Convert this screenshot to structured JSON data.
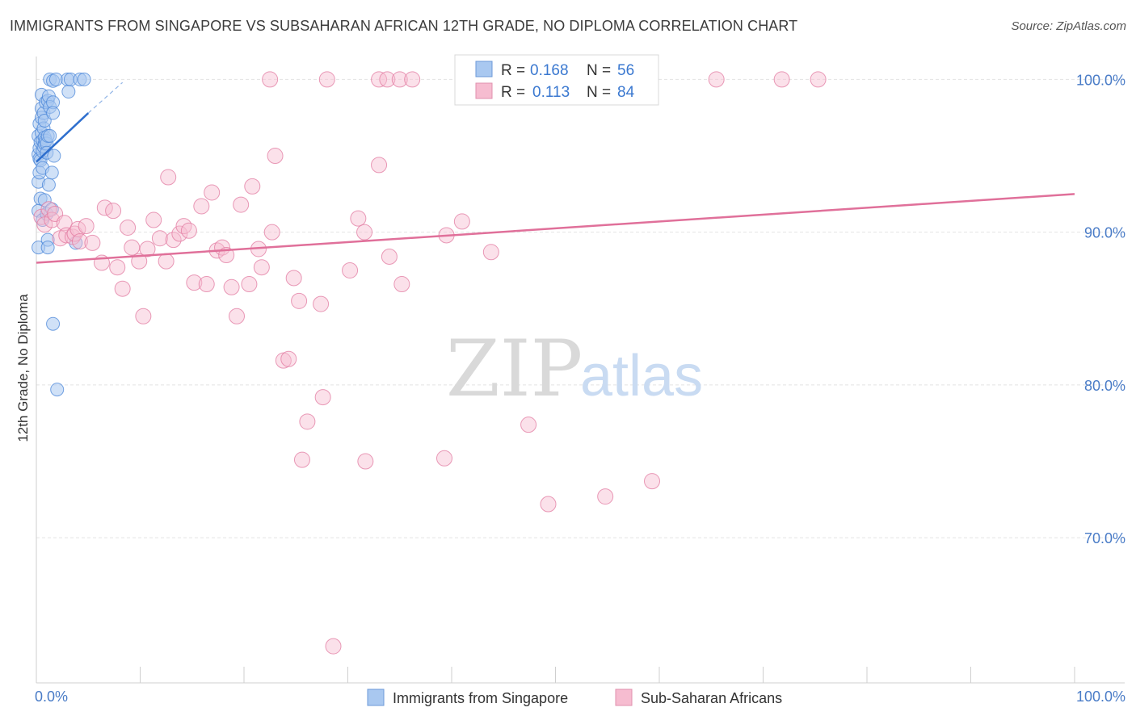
{
  "header": {
    "title": "IMMIGRANTS FROM SINGAPORE VS SUBSAHARAN AFRICAN 12TH GRADE, NO DIPLOMA CORRELATION CHART",
    "source": "Source: ZipAtlas.com"
  },
  "watermark": {
    "zip": "ZIP",
    "atlas": "atlas"
  },
  "colors": {
    "blue": "#4a86d8",
    "blue_fill": "#a9c8f0",
    "pink": "#e27aa0",
    "pink_fill": "#f6bcd0",
    "grid": "#e3e3e3",
    "tick_text": "#4a7cc7"
  },
  "legend": {
    "rows": [
      {
        "r_label": "R = ",
        "r_value": "0.168",
        "n_label": "N = ",
        "n_value": "56"
      },
      {
        "r_label": "R = ",
        "r_value": "0.113",
        "n_label": "N = ",
        "n_value": "84"
      }
    ]
  },
  "bottom_legend": [
    "Immigrants from Singapore",
    "Sub-Saharan Africans"
  ],
  "chart_data": {
    "type": "scatter",
    "xlabel": "",
    "ylabel": "12th Grade, No Diploma",
    "xlim": [
      0,
      100
    ],
    "ylim": [
      60.5,
      101.5
    ],
    "x_tick_labels": [
      "0.0%",
      "100.0%"
    ],
    "y_ticks": [
      70,
      80,
      90,
      100
    ],
    "y_tick_labels": [
      "70.0%",
      "80.0%",
      "90.0%",
      "100.0%"
    ],
    "grid": true,
    "series": [
      {
        "name": "Immigrants from Singapore",
        "r": 0.168,
        "n": 56,
        "trend": {
          "x": [
            0.0,
            5.0
          ],
          "y": [
            94.6,
            97.8
          ],
          "dashed_to": [
            8.3,
            99.8
          ]
        },
        "points": [
          [
            0.2,
            96.3
          ],
          [
            0.2,
            95.1
          ],
          [
            0.2,
            93.3
          ],
          [
            0.2,
            91.4
          ],
          [
            0.2,
            89.0
          ],
          [
            0.3,
            97.1
          ],
          [
            0.3,
            95.5
          ],
          [
            0.3,
            94.8
          ],
          [
            0.3,
            93.9
          ],
          [
            0.4,
            95.9
          ],
          [
            0.4,
            94.7
          ],
          [
            0.4,
            92.2
          ],
          [
            0.5,
            99.0
          ],
          [
            0.5,
            98.1
          ],
          [
            0.5,
            97.5
          ],
          [
            0.5,
            96.5
          ],
          [
            0.6,
            96.0
          ],
          [
            0.6,
            95.3
          ],
          [
            0.6,
            94.2
          ],
          [
            0.6,
            90.8
          ],
          [
            0.7,
            97.8
          ],
          [
            0.7,
            96.8
          ],
          [
            0.7,
            95.6
          ],
          [
            0.8,
            97.3
          ],
          [
            0.8,
            96.2
          ],
          [
            0.8,
            95.8
          ],
          [
            0.8,
            92.1
          ],
          [
            0.9,
            98.5
          ],
          [
            0.9,
            96.0
          ],
          [
            1.0,
            95.8
          ],
          [
            1.0,
            95.2
          ],
          [
            1.0,
            91.2
          ],
          [
            1.1,
            98.6
          ],
          [
            1.1,
            96.3
          ],
          [
            1.1,
            89.5
          ],
          [
            1.1,
            89.0
          ],
          [
            1.2,
            98.9
          ],
          [
            1.2,
            93.1
          ],
          [
            1.3,
            100.0
          ],
          [
            1.3,
            98.2
          ],
          [
            1.3,
            96.3
          ],
          [
            1.5,
            93.9
          ],
          [
            1.5,
            91.5
          ],
          [
            1.6,
            99.9
          ],
          [
            1.6,
            98.5
          ],
          [
            1.6,
            97.8
          ],
          [
            1.7,
            95.0
          ],
          [
            1.6,
            84.0
          ],
          [
            1.9,
            100.0
          ],
          [
            2.0,
            79.7
          ],
          [
            3.0,
            100.0
          ],
          [
            3.1,
            99.2
          ],
          [
            3.3,
            100.0
          ],
          [
            3.8,
            89.3
          ],
          [
            4.2,
            100.0
          ],
          [
            4.6,
            100.0
          ]
        ]
      },
      {
        "name": "Sub-Saharan Africans",
        "r": 0.113,
        "n": 84,
        "trend": {
          "x": [
            0.0,
            100.0
          ],
          "y": [
            88.0,
            92.5
          ]
        },
        "points": [
          [
            0.5,
            91.0
          ],
          [
            0.8,
            90.5
          ],
          [
            1.2,
            91.5
          ],
          [
            1.5,
            90.8
          ],
          [
            1.8,
            91.2
          ],
          [
            2.3,
            89.6
          ],
          [
            2.7,
            90.6
          ],
          [
            2.9,
            89.8
          ],
          [
            3.5,
            89.7
          ],
          [
            3.7,
            89.9
          ],
          [
            4.0,
            90.2
          ],
          [
            4.2,
            89.4
          ],
          [
            4.8,
            90.4
          ],
          [
            5.4,
            89.3
          ],
          [
            6.3,
            88.0
          ],
          [
            6.6,
            91.6
          ],
          [
            7.4,
            91.4
          ],
          [
            7.8,
            87.7
          ],
          [
            8.3,
            86.3
          ],
          [
            8.8,
            90.3
          ],
          [
            9.2,
            89.0
          ],
          [
            9.9,
            88.1
          ],
          [
            10.3,
            84.5
          ],
          [
            10.7,
            88.9
          ],
          [
            11.3,
            90.8
          ],
          [
            11.9,
            89.6
          ],
          [
            12.5,
            88.1
          ],
          [
            12.7,
            93.6
          ],
          [
            13.2,
            89.5
          ],
          [
            13.8,
            89.9
          ],
          [
            14.2,
            90.4
          ],
          [
            14.7,
            90.1
          ],
          [
            15.2,
            86.7
          ],
          [
            15.9,
            91.7
          ],
          [
            16.4,
            86.6
          ],
          [
            16.9,
            92.6
          ],
          [
            17.4,
            88.8
          ],
          [
            17.9,
            89.0
          ],
          [
            18.3,
            88.5
          ],
          [
            18.8,
            86.4
          ],
          [
            19.3,
            84.5
          ],
          [
            19.7,
            91.8
          ],
          [
            20.5,
            86.6
          ],
          [
            20.8,
            93.0
          ],
          [
            21.4,
            88.9
          ],
          [
            21.7,
            87.7
          ],
          [
            22.7,
            90.0
          ],
          [
            23.0,
            95.0
          ],
          [
            23.8,
            81.6
          ],
          [
            24.3,
            81.7
          ],
          [
            24.8,
            87.0
          ],
          [
            25.3,
            85.5
          ],
          [
            25.6,
            75.1
          ],
          [
            26.1,
            77.6
          ],
          [
            27.4,
            85.3
          ],
          [
            27.6,
            79.2
          ],
          [
            28.6,
            62.9
          ],
          [
            30.2,
            87.5
          ],
          [
            31.0,
            90.9
          ],
          [
            31.6,
            90.0
          ],
          [
            31.7,
            75.0
          ],
          [
            33.0,
            94.4
          ],
          [
            34.0,
            88.4
          ],
          [
            35.2,
            86.6
          ],
          [
            39.3,
            75.2
          ],
          [
            39.5,
            89.8
          ],
          [
            41.0,
            90.7
          ],
          [
            43.8,
            88.7
          ],
          [
            47.4,
            77.4
          ],
          [
            49.3,
            72.2
          ],
          [
            54.8,
            72.7
          ],
          [
            59.3,
            73.7
          ],
          [
            22.5,
            100.0
          ],
          [
            28.0,
            100.0
          ],
          [
            33.0,
            100.0
          ],
          [
            33.8,
            100.0
          ],
          [
            35.0,
            100.0
          ],
          [
            36.2,
            100.0
          ],
          [
            42.3,
            100.0
          ],
          [
            48.2,
            100.0
          ],
          [
            54.3,
            100.0
          ],
          [
            65.5,
            100.0
          ],
          [
            71.8,
            100.0
          ],
          [
            75.3,
            100.0
          ]
        ]
      }
    ]
  }
}
